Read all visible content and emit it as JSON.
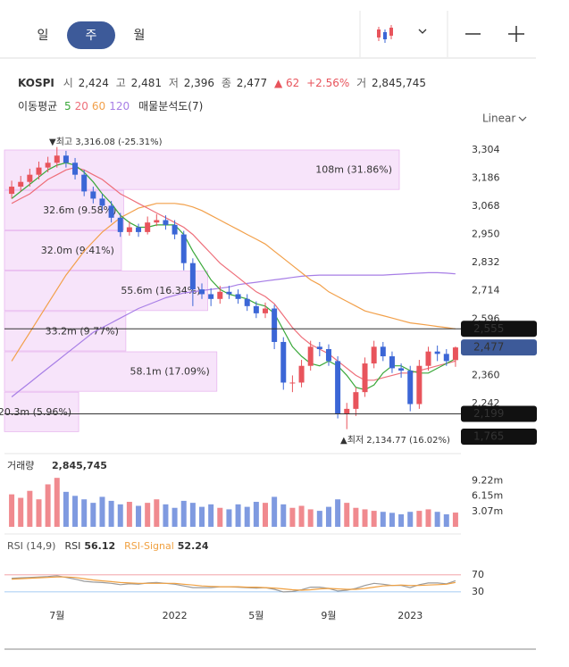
{
  "tabs": [
    "일",
    "주",
    "월"
  ],
  "quote": {
    "name": "KOSPI",
    "open_label": "시",
    "open": "2,424",
    "high_label": "고",
    "high": "2,481",
    "low_label": "저",
    "low": "2,396",
    "close_label": "종",
    "close": "2,477",
    "change": "▲ 62",
    "change_pct": "+2.56%",
    "volume_label": "거",
    "volume": "2,845,745"
  },
  "ma_legend": {
    "label": "이동평균",
    "periods": [
      5,
      20,
      60,
      120
    ],
    "profile_label": "매물분석도(7)"
  },
  "scale_label": "Linear",
  "chart_data": {
    "type": "candlestick",
    "categories": [
      null,
      null,
      null,
      null,
      null,
      "7월",
      null,
      null,
      null,
      null,
      null,
      null,
      null,
      null,
      null,
      null,
      null,
      null,
      "2022",
      null,
      null,
      null,
      null,
      null,
      null,
      null,
      null,
      "5월",
      null,
      null,
      null,
      null,
      null,
      null,
      null,
      "9월",
      null,
      null,
      null,
      null,
      null,
      null,
      null,
      null,
      "2023",
      null,
      null,
      null,
      null,
      null
    ],
    "open": [
      3120,
      3150,
      3170,
      3200,
      3230,
      3250,
      3280,
      3250,
      3200,
      3130,
      3100,
      3070,
      3020,
      2960,
      2980,
      2960,
      3000,
      3010,
      2990,
      2950,
      2830,
      2720,
      2700,
      2680,
      2710,
      2700,
      2680,
      2650,
      2620,
      2640,
      2500,
      2330,
      2330,
      2400,
      2480,
      2470,
      2420,
      2200,
      2220,
      2290,
      2410,
      2480,
      2440,
      2390,
      2380,
      2240,
      2400,
      2460,
      2450,
      2424
    ],
    "high": [
      3175,
      3195,
      3225,
      3255,
      3275,
      3316,
      3300,
      3270,
      3220,
      3150,
      3120,
      3090,
      3040,
      3005,
      2995,
      3025,
      3035,
      3030,
      3010,
      2965,
      2850,
      2745,
      2725,
      2735,
      2735,
      2720,
      2700,
      2670,
      2665,
      2655,
      2520,
      2360,
      2425,
      2505,
      2500,
      2490,
      2440,
      2245,
      2310,
      2435,
      2505,
      2500,
      2460,
      2410,
      2400,
      2425,
      2480,
      2485,
      2470,
      2481
    ],
    "low": [
      3100,
      3130,
      3150,
      3180,
      3210,
      3230,
      3230,
      3180,
      3110,
      3080,
      3050,
      3000,
      2940,
      2945,
      2940,
      2950,
      2985,
      2970,
      2930,
      2800,
      2650,
      2680,
      2650,
      2660,
      2680,
      2660,
      2630,
      2600,
      2600,
      2470,
      2300,
      2290,
      2310,
      2380,
      2440,
      2400,
      2180,
      2135,
      2190,
      2270,
      2390,
      2420,
      2370,
      2350,
      2210,
      2220,
      2380,
      2420,
      2400,
      2396
    ],
    "close": [
      3150,
      3170,
      3200,
      3230,
      3250,
      3280,
      3250,
      3200,
      3130,
      3100,
      3070,
      3020,
      2960,
      2980,
      2960,
      3000,
      3010,
      2990,
      2950,
      2830,
      2720,
      2700,
      2680,
      2710,
      2700,
      2680,
      2650,
      2620,
      2640,
      2500,
      2330,
      2330,
      2400,
      2480,
      2470,
      2420,
      2200,
      2220,
      2290,
      2410,
      2480,
      2440,
      2390,
      2380,
      2240,
      2400,
      2460,
      2450,
      2420,
      2477
    ],
    "up_color": "#e8545c",
    "down_color": "#3b66d6",
    "series": [
      {
        "name": "5",
        "color": "#3aa83a",
        "values": [
          3100,
          3130,
          3160,
          3190,
          3220,
          3240,
          3250,
          3240,
          3210,
          3170,
          3120,
          3080,
          3030,
          3000,
          2980,
          2980,
          2990,
          2990,
          2990,
          2950,
          2880,
          2820,
          2760,
          2720,
          2700,
          2690,
          2680,
          2660,
          2650,
          2620,
          2550,
          2480,
          2440,
          2410,
          2400,
          2420,
          2400,
          2360,
          2310,
          2300,
          2320,
          2370,
          2400,
          2400,
          2380,
          2370,
          2370,
          2390,
          2410,
          2430
        ]
      },
      {
        "name": "20",
        "color": "#ee6f7a",
        "values": [
          3080,
          3100,
          3120,
          3150,
          3180,
          3200,
          3220,
          3230,
          3220,
          3200,
          3180,
          3150,
          3120,
          3100,
          3080,
          3060,
          3040,
          3020,
          3000,
          2980,
          2950,
          2910,
          2870,
          2830,
          2800,
          2770,
          2740,
          2710,
          2690,
          2660,
          2610,
          2560,
          2520,
          2490,
          2470,
          2450,
          2420,
          2390,
          2360,
          2340,
          2340,
          2350,
          2360,
          2370,
          2370,
          2380,
          2390,
          2400,
          2410,
          2420
        ]
      },
      {
        "name": "60",
        "color": "#f2a04a",
        "values": [
          2420,
          2480,
          2540,
          2600,
          2660,
          2720,
          2780,
          2830,
          2880,
          2920,
          2960,
          2990,
          3020,
          3040,
          3060,
          3070,
          3080,
          3080,
          3080,
          3075,
          3065,
          3050,
          3030,
          3010,
          2990,
          2970,
          2950,
          2930,
          2910,
          2880,
          2850,
          2820,
          2790,
          2760,
          2740,
          2710,
          2690,
          2670,
          2650,
          2630,
          2620,
          2610,
          2600,
          2590,
          2580,
          2575,
          2570,
          2565,
          2560,
          2555
        ]
      },
      {
        "name": "120",
        "color": "#a77ee6",
        "values": [
          2270,
          2300,
          2330,
          2360,
          2390,
          2420,
          2450,
          2480,
          2510,
          2540,
          2560,
          2580,
          2600,
          2620,
          2640,
          2655,
          2670,
          2685,
          2695,
          2705,
          2710,
          2715,
          2720,
          2725,
          2730,
          2740,
          2745,
          2750,
          2755,
          2760,
          2765,
          2770,
          2775,
          2778,
          2780,
          2780,
          2780,
          2780,
          2780,
          2780,
          2780,
          2780,
          2782,
          2784,
          2786,
          2788,
          2790,
          2790,
          2788,
          2785
        ]
      }
    ],
    "ylim": [
      2100,
      3352
    ],
    "yticks": [
      {
        "value": 3304,
        "label": "3,304"
      },
      {
        "value": 3186,
        "label": "3,186"
      },
      {
        "value": 3068,
        "label": "3,068"
      },
      {
        "value": 2950,
        "label": "2,950"
      },
      {
        "value": 2832,
        "label": "2,832"
      },
      {
        "value": 2714,
        "label": "2,714"
      },
      {
        "value": 2596,
        "label": "2,596"
      },
      {
        "value": 2360,
        "label": "2,360"
      },
      {
        "value": 2242,
        "label": "2,242"
      }
    ],
    "price_tags": [
      {
        "value": 2555,
        "label": "2,555",
        "color": "#111111",
        "line": true
      },
      {
        "value": 2477,
        "label": "2,477",
        "color": "#3d5a99",
        "line": false
      },
      {
        "value": 2199,
        "label": "2,199",
        "color": "#111111",
        "line": true
      }
    ],
    "offscale_tag": {
      "value": 1765,
      "label": "1,765",
      "color": "#111111"
    },
    "annotations": {
      "high": "▼최고 3,316.08 (-25.31%)",
      "low": "▲최저 2,134.77 (16.02%)"
    },
    "profile": {
      "values": [
        108,
        32.6,
        32.0,
        55.6,
        33.2,
        58.1,
        20.3
      ],
      "value_labels": [
        "108m (31.86%)",
        "32.6m (9.58%)",
        "32.0m (9.41%)",
        "55.6m (16.34%)",
        "33.2m (9.77%)",
        "58.1m (17.09%)",
        "20.3m (5.96%)"
      ],
      "color": "#f7e4fa"
    },
    "volume": {
      "label": "거래량",
      "last": "2,845,745",
      "values": [
        6.5,
        5.8,
        7.2,
        5.5,
        8.5,
        9.8,
        7.0,
        6.2,
        5.5,
        4.8,
        6.0,
        5.2,
        4.5,
        5.0,
        4.2,
        4.8,
        5.5,
        4.5,
        3.8,
        5.2,
        4.8,
        4.0,
        4.5,
        3.8,
        3.5,
        4.5,
        4.0,
        5.0,
        4.8,
        6.0,
        4.5,
        3.8,
        4.2,
        3.5,
        3.2,
        4.0,
        5.5,
        4.8,
        3.8,
        3.5,
        3.2,
        3.0,
        2.8,
        2.5,
        3.0,
        3.2,
        3.5,
        3.0,
        2.5,
        2.85
      ],
      "ylim": [
        0,
        14.3
      ],
      "yticks": [
        {
          "value": 9.22,
          "label": "9.22m"
        },
        {
          "value": 6.15,
          "label": "6.15m"
        },
        {
          "value": 3.07,
          "label": "3.07m"
        }
      ]
    },
    "rsi": {
      "label": "RSI (14,9)",
      "rsi_name": "RSI",
      "rsi_last": "56.12",
      "signal_name": "RSI-Signal",
      "signal_last": "52.24",
      "values": [
        62,
        63,
        64,
        65,
        66,
        68,
        64,
        60,
        55,
        53,
        52,
        50,
        47,
        49,
        48,
        51,
        52,
        50,
        48,
        44,
        40,
        40,
        40,
        42,
        42,
        41,
        40,
        39,
        40,
        36,
        30,
        31,
        35,
        41,
        41,
        38,
        32,
        34,
        38,
        45,
        50,
        48,
        45,
        45,
        40,
        47,
        51,
        51,
        49,
        56.12
      ],
      "signal": [
        60,
        61,
        62,
        63,
        64,
        65,
        65,
        64,
        61,
        58,
        56,
        54,
        52,
        51,
        50,
        50,
        50,
        50,
        50,
        48,
        46,
        44,
        43,
        42,
        42,
        42,
        41,
        41,
        40,
        39,
        37,
        35,
        34,
        35,
        37,
        38,
        37,
        36,
        36,
        38,
        41,
        44,
        45,
        46,
        45,
        45,
        46,
        47,
        48,
        52.24
      ],
      "rsi_color": "#9a9a9a",
      "signal_color": "#f0a040",
      "ylim": [
        -6,
        162
      ],
      "yticks": [
        70,
        30
      ],
      "tick_colors": [
        "#e8545c",
        "#3a8ee6"
      ]
    }
  }
}
